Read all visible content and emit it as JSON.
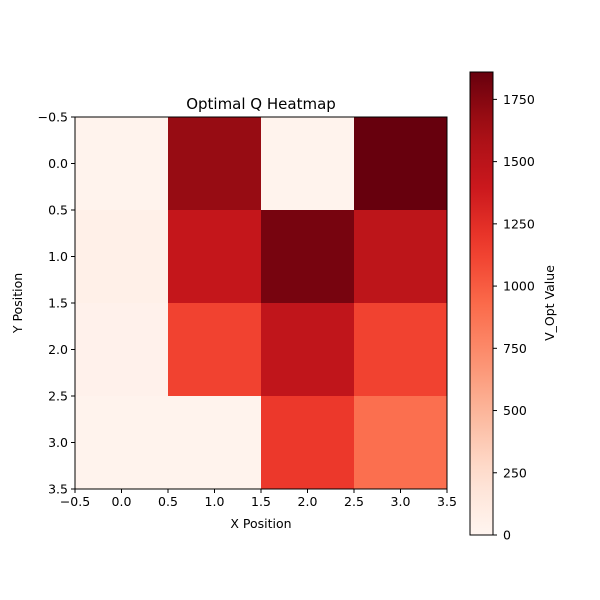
{
  "chart_data": {
    "type": "heatmap",
    "title": "Optimal Q Heatmap",
    "xlabel": "X Position",
    "ylabel": "Y Position",
    "colorbar_label": "V_Opt Value",
    "colormap": "Reds",
    "x": [
      0,
      1,
      2,
      3
    ],
    "y": [
      0,
      1,
      2,
      3
    ],
    "xlim": [
      -0.5,
      3.5
    ],
    "ylim": [
      3.5,
      -0.5
    ],
    "x_ticks": [
      "−0.5",
      "0.0",
      "0.5",
      "1.0",
      "1.5",
      "2.0",
      "2.5",
      "3.0",
      "3.5"
    ],
    "y_ticks": [
      "−0.5",
      "0.0",
      "0.5",
      "1.0",
      "1.5",
      "2.0",
      "2.5",
      "3.0",
      "3.5"
    ],
    "values": [
      [
        20,
        1680,
        20,
        1860
      ],
      [
        60,
        1440,
        1800,
        1480
      ],
      [
        40,
        1130,
        1460,
        1130
      ],
      [
        20,
        20,
        1180,
        900
      ]
    ],
    "colorbar_range": [
      0,
      1860
    ],
    "colorbar_ticks": [
      {
        "value": 0,
        "label": "0"
      },
      {
        "value": 250,
        "label": "250"
      },
      {
        "value": 500,
        "label": "500"
      },
      {
        "value": 750,
        "label": "750"
      },
      {
        "value": 1000,
        "label": "1000"
      },
      {
        "value": 1250,
        "label": "1250"
      },
      {
        "value": 1500,
        "label": "1500"
      },
      {
        "value": 1750,
        "label": "1750"
      }
    ],
    "grid": false
  }
}
